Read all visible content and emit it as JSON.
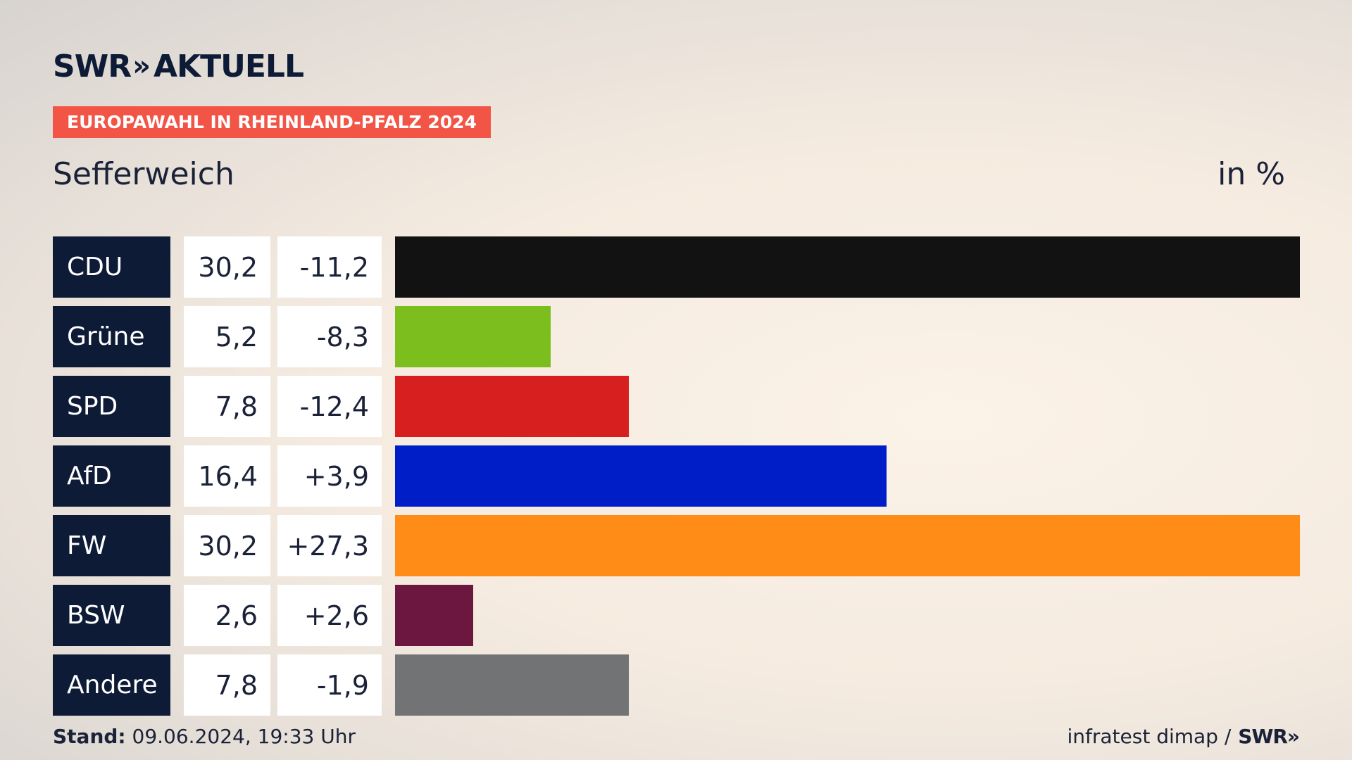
{
  "header": {
    "logo_text": "SWR",
    "logo_chevrons": "»",
    "logo_suffix": "AKTUELL",
    "tag": "EUROPAWAHL IN RHEINLAND-PFALZ 2024",
    "region": "Sefferweich",
    "unit": "in %"
  },
  "footer": {
    "stand_label": "Stand:",
    "stand_value": " 09.06.2024, 19:33 Uhr",
    "source": "infratest dimap /",
    "source_logo": "SWR»"
  },
  "chart_data": {
    "type": "bar",
    "orientation": "horizontal",
    "categories": [
      "CDU",
      "Grüne",
      "SPD",
      "AfD",
      "FW",
      "BSW",
      "Andere"
    ],
    "values": [
      30.2,
      5.2,
      7.8,
      16.4,
      30.2,
      2.6,
      7.8
    ],
    "value_labels": [
      "30,2",
      "5,2",
      "7,8",
      "16,4",
      "30,2",
      "2,6",
      "7,8"
    ],
    "diff_labels": [
      "-11,2",
      "-8,3",
      "-12,4",
      "+3,9",
      "+27,3",
      "+2,6",
      "-1,9"
    ],
    "colors": [
      "#121212",
      "#7cbe1e",
      "#d81f1f",
      "#001ec8",
      "#ff8c17",
      "#6b173f",
      "#727375"
    ],
    "xlim": [
      0,
      30.2
    ],
    "grid": false,
    "legend": "none"
  }
}
